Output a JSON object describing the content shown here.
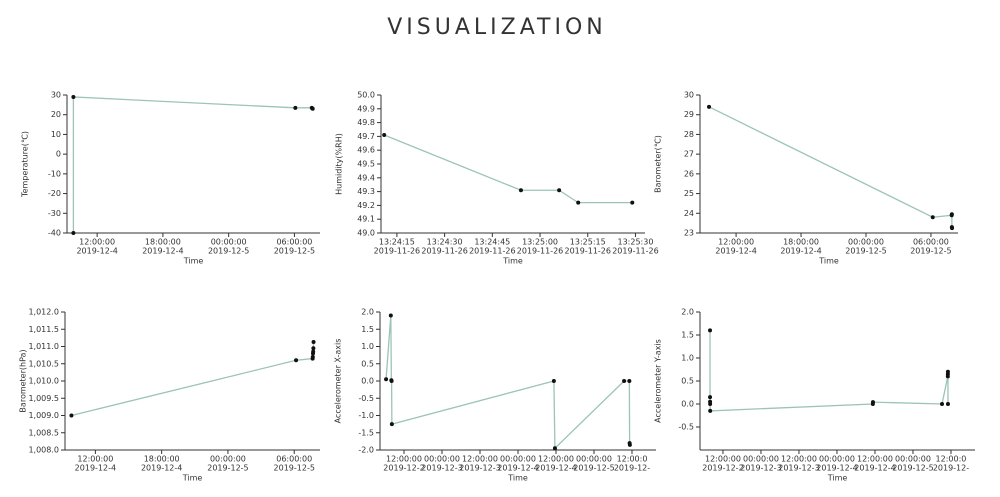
{
  "title": "VISUALIZATION",
  "chart_data": [
    {
      "type": "line",
      "y_label": "Temperature(℃)",
      "x_label": "Time",
      "color": "#9cc4b6",
      "x": [
        "2019-12-04T09:50:00",
        "2019-12-04T09:50:00",
        "2019-12-05T06:05:00",
        "2019-12-05T07:35:00",
        "2019-12-05T07:40:00"
      ],
      "values": [
        -40,
        29,
        23.5,
        23.5,
        23
      ],
      "xlim": [
        "2019-12-04T09:15:00",
        "2019-12-05T08:20:00"
      ],
      "ylim": [
        -40,
        30
      ],
      "xticks": [
        {
          "value": "2019-12-04T12:00:00",
          "label": [
            "12:00:00",
            "2019-12-4"
          ]
        },
        {
          "value": "2019-12-04T18:00:00",
          "label": [
            "18:00:00",
            "2019-12-4"
          ]
        },
        {
          "value": "2019-12-05T00:00:00",
          "label": [
            "00:00:00",
            "2019-12-5"
          ]
        },
        {
          "value": "2019-12-05T06:00:00",
          "label": [
            "06:00:00",
            "2019-12-5"
          ]
        }
      ],
      "yticks": [
        -40,
        -30,
        -20,
        -10,
        0,
        10,
        20,
        30
      ]
    },
    {
      "type": "line",
      "y_label": "Humidity(%RH)",
      "x_label": "Time",
      "color": "#9cc4b6",
      "x": [
        "2019-11-26T13:24:11",
        "2019-11-26T13:24:54",
        "2019-11-26T13:25:06",
        "2019-11-26T13:25:12",
        "2019-11-26T13:25:29"
      ],
      "values": [
        49.71,
        49.31,
        49.31,
        49.22,
        49.22
      ],
      "xlim": [
        "2019-11-26T13:24:10",
        "2019-11-26T13:25:33"
      ],
      "ylim": [
        49.0,
        50.0
      ],
      "xticks": [
        {
          "value": "2019-11-26T13:24:15",
          "label": [
            "13:24:15",
            "2019-11-26"
          ]
        },
        {
          "value": "2019-11-26T13:24:30",
          "label": [
            "13:24:30",
            "2019-11-26"
          ]
        },
        {
          "value": "2019-11-26T13:24:45",
          "label": [
            "13:24:45",
            "2019-11-26"
          ]
        },
        {
          "value": "2019-11-26T13:25:00",
          "label": [
            "13:25:00",
            "2019-11-26"
          ]
        },
        {
          "value": "2019-11-26T13:25:15",
          "label": [
            "13:25:15",
            "2019-11-26"
          ]
        },
        {
          "value": "2019-11-26T13:25:30",
          "label": [
            "13:25:30",
            "2019-11-26"
          ]
        }
      ],
      "yticks": [
        {
          "value": 49,
          "label": "49.0"
        },
        49.1,
        49.2,
        49.3,
        49.4,
        49.5,
        49.6,
        49.7,
        49.8,
        49.9,
        {
          "value": 50,
          "label": "50.0"
        }
      ]
    },
    {
      "type": "line",
      "y_label": "Barometer(℃)",
      "x_label": "Time",
      "color": "#9cc4b6",
      "x": [
        "2019-12-04T09:30:00",
        "2019-12-05T06:10:00",
        "2019-12-05T07:55:00",
        "2019-12-05T07:56:00",
        "2019-12-05T07:56:00",
        "2019-12-05T07:57:00"
      ],
      "values": [
        29.4,
        23.8,
        23.9,
        23.95,
        23.3,
        23.25
      ],
      "xlim": [
        "2019-12-04T08:40:00",
        "2019-12-05T08:30:00"
      ],
      "ylim": [
        23,
        30
      ],
      "xticks": [
        {
          "value": "2019-12-04T12:00:00",
          "label": [
            "12:00:00",
            "2019-12-4"
          ]
        },
        {
          "value": "2019-12-04T18:00:00",
          "label": [
            "18:00:00",
            "2019-12-4"
          ]
        },
        {
          "value": "2019-12-05T00:00:00",
          "label": [
            "00:00:00",
            "2019-12-5"
          ]
        },
        {
          "value": "2019-12-05T06:00:00",
          "label": [
            "06:00:00",
            "2019-12-5"
          ]
        }
      ],
      "yticks": [
        23,
        24,
        25,
        26,
        27,
        28,
        29,
        30
      ]
    },
    {
      "type": "line",
      "y_label": "Barometer(hPa)",
      "x_label": "Time",
      "color": "#9cc4b6",
      "x": [
        "2019-12-04T09:50:00",
        "2019-12-05T06:10:00",
        "2019-12-05T07:40:00",
        "2019-12-05T07:41:00",
        "2019-12-05T07:42:00",
        "2019-12-05T07:43:00",
        "2019-12-05T07:44:00",
        "2019-12-05T07:45:00"
      ],
      "values": [
        1009.0,
        1010.6,
        1010.65,
        1010.7,
        1010.8,
        1010.85,
        1010.95,
        1011.13
      ],
      "xlim": [
        "2019-12-04T09:15:00",
        "2019-12-05T08:20:00"
      ],
      "ylim": [
        1008,
        1012
      ],
      "xticks": [
        {
          "value": "2019-12-04T12:00:00",
          "label": [
            "12:00:00",
            "2019-12-4"
          ]
        },
        {
          "value": "2019-12-04T18:00:00",
          "label": [
            "18:00:00",
            "2019-12-4"
          ]
        },
        {
          "value": "2019-12-05T00:00:00",
          "label": [
            "00:00:00",
            "2019-12-5"
          ]
        },
        {
          "value": "2019-12-05T06:00:00",
          "label": [
            "06:00:00",
            "2019-12-5"
          ]
        }
      ],
      "yticks": [
        {
          "value": 1008,
          "label": "1,008.0"
        },
        {
          "value": 1008.5,
          "label": "1,008.5"
        },
        {
          "value": 1009,
          "label": "1,009.0"
        },
        {
          "value": 1009.5,
          "label": "1,009.5"
        },
        {
          "value": 1010,
          "label": "1,010.0"
        },
        {
          "value": 1010.5,
          "label": "1,010.5"
        },
        {
          "value": 1011,
          "label": "1,011.0"
        },
        {
          "value": 1011.5,
          "label": "1,011.5"
        },
        {
          "value": 1012,
          "label": "1,012.0"
        }
      ]
    },
    {
      "type": "line",
      "y_label": "Accelerometer X-axis",
      "x_label": "Time",
      "color": "#9cc4b6",
      "x": [
        "2019-12-02T06:20:00",
        "2019-12-02T07:50:00",
        "2019-12-02T08:00:00",
        "2019-12-02T08:05:00",
        "2019-12-02T08:10:00",
        "2019-12-04T11:20:00",
        "2019-12-04T11:40:00",
        "2019-12-05T09:30:00",
        "2019-12-05T11:10:00",
        "2019-12-05T11:15:00",
        "2019-12-05T11:20:00"
      ],
      "values": [
        0.05,
        1.9,
        0.02,
        0.0,
        -1.25,
        0.0,
        -1.95,
        0.0,
        0.0,
        -1.8,
        -1.85
      ],
      "xlim": [
        "2019-12-02T04:25:00",
        "2019-12-05T19:35:00"
      ],
      "ylim": [
        -2,
        2
      ],
      "xticks": [
        {
          "value": "2019-12-02T12:00:00",
          "label": [
            "12:00:00",
            "2019-12-2"
          ]
        },
        {
          "value": "2019-12-03T00:00:00",
          "label": [
            "00:00:00",
            "2019-12-3"
          ]
        },
        {
          "value": "2019-12-03T12:00:00",
          "label": [
            "12:00:00",
            "2019-12-3"
          ]
        },
        {
          "value": "2019-12-04T00:00:00",
          "label": [
            "00:00:00",
            "2019-12-4"
          ]
        },
        {
          "value": "2019-12-04T12:00:00",
          "label": [
            "12:00:00",
            "2019-12-4"
          ]
        },
        {
          "value": "2019-12-05T00:00:00",
          "label": [
            "00:00:00",
            "2019-12-5"
          ]
        },
        {
          "value": "2019-12-05T12:00:00",
          "label": [
            "12:00:0",
            "2019-12-"
          ]
        }
      ],
      "yticks": [
        {
          "value": -2,
          "label": "-2.0"
        },
        -1.5,
        {
          "value": -1,
          "label": "-1.0"
        },
        -0.5,
        {
          "value": 0,
          "label": "0.0"
        },
        0.5,
        {
          "value": 1,
          "label": "1.0"
        },
        1.5,
        {
          "value": 2,
          "label": "2.0"
        }
      ]
    },
    {
      "type": "line",
      "y_label": "Accelerometer Y-axis",
      "x_label": "Time",
      "color": "#9cc4b6",
      "x": [
        "2019-12-02T07:55:00",
        "2019-12-02T07:55:00",
        "2019-12-02T07:56:00",
        "2019-12-02T07:57:00",
        "2019-12-02T07:58:00",
        "2019-12-04T11:20:00",
        "2019-12-04T11:22:00",
        "2019-12-05T09:10:00",
        "2019-12-05T11:00:00",
        "2019-12-05T11:01:00",
        "2019-12-05T11:02:00",
        "2019-12-05T11:03:00"
      ],
      "values": [
        1.6,
        0.15,
        0.05,
        0.0,
        -0.15,
        0.0,
        0.04,
        0.0,
        0.6,
        0.65,
        0.7,
        0.0
      ],
      "xlim": [
        "2019-12-02T04:45:00",
        "2019-12-05T19:35:00"
      ],
      "ylim": [
        -1,
        2
      ],
      "xticks": [
        {
          "value": "2019-12-02T12:00:00",
          "label": [
            "12:00:00",
            "2019-12-2"
          ]
        },
        {
          "value": "2019-12-03T00:00:00",
          "label": [
            "00:00:00",
            "2019-12-3"
          ]
        },
        {
          "value": "2019-12-03T12:00:00",
          "label": [
            "12:00:00",
            "2019-12-3"
          ]
        },
        {
          "value": "2019-12-04T00:00:00",
          "label": [
            "00:00:00",
            "2019-12-4"
          ]
        },
        {
          "value": "2019-12-04T12:00:00",
          "label": [
            "12:00:00",
            "2019-12-4"
          ]
        },
        {
          "value": "2019-12-05T00:00:00",
          "label": [
            "00:00:00",
            "2019-12-5"
          ]
        },
        {
          "value": "2019-12-05T12:00:00",
          "label": [
            "12:00:0",
            "2019-12-"
          ]
        }
      ],
      "yticks": [
        -0.5,
        {
          "value": 0,
          "label": "0.0"
        },
        0.5,
        {
          "value": 1,
          "label": "1.0"
        },
        1.5,
        {
          "value": 2,
          "label": "2.0"
        }
      ]
    }
  ]
}
